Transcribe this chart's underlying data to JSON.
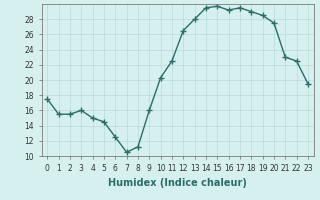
{
  "xlabel": "Humidex (Indice chaleur)",
  "x": [
    0,
    1,
    2,
    3,
    4,
    5,
    6,
    7,
    8,
    9,
    10,
    11,
    12,
    13,
    14,
    15,
    16,
    17,
    18,
    19,
    20,
    21,
    22,
    23
  ],
  "y": [
    17.5,
    15.5,
    15.5,
    16.0,
    15.0,
    14.5,
    12.5,
    10.5,
    11.2,
    16.0,
    20.3,
    22.5,
    26.5,
    28.0,
    29.5,
    29.7,
    29.2,
    29.5,
    29.0,
    28.5,
    27.5,
    23.0,
    22.5,
    19.5
  ],
  "line_color": "#2a6e65",
  "marker": "+",
  "marker_size": 5,
  "bg_color": "#d6f0f0",
  "grid_color": "#b8dada",
  "ylim": [
    10,
    30
  ],
  "yticks": [
    10,
    12,
    14,
    16,
    18,
    20,
    22,
    24,
    26,
    28
  ],
  "xticks": [
    0,
    1,
    2,
    3,
    4,
    5,
    6,
    7,
    8,
    9,
    10,
    11,
    12,
    13,
    14,
    15,
    16,
    17,
    18,
    19,
    20,
    21,
    22,
    23
  ],
  "tick_fontsize": 5.5,
  "label_fontsize": 7,
  "line_width": 1.0
}
